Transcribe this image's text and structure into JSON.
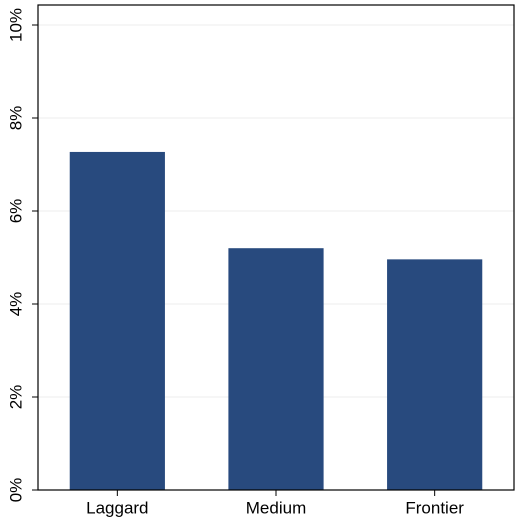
{
  "chart_data": {
    "type": "bar",
    "categories": [
      "Laggard",
      "Medium",
      "Frontier"
    ],
    "values": [
      7.27,
      5.2,
      4.96
    ],
    "color": "#284a7e",
    "ylim": [
      0,
      10.43
    ],
    "yticks": [
      {
        "value": 0,
        "label": "0%"
      },
      {
        "value": 2,
        "label": "2%"
      },
      {
        "value": 4,
        "label": "4%"
      },
      {
        "value": 6,
        "label": "6%"
      },
      {
        "value": 8,
        "label": "8%"
      },
      {
        "value": 10,
        "label": "10%"
      }
    ],
    "grid": true
  }
}
